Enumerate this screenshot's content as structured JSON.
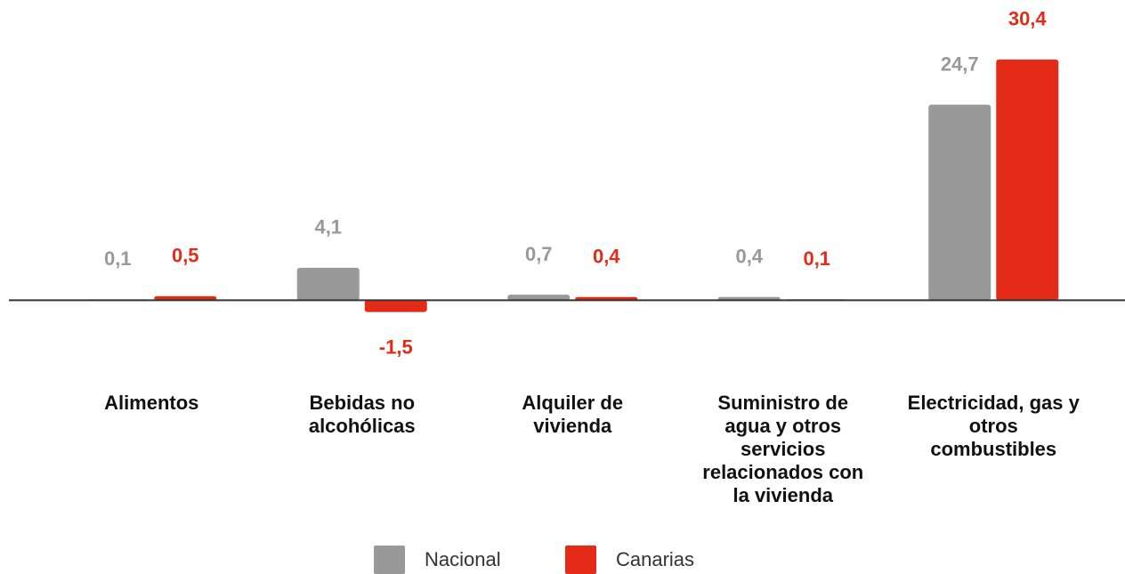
{
  "chart_data": {
    "type": "bar",
    "categories": [
      "Alimentos",
      "Bebidas no alcohólicas",
      "Alquiler de vivienda",
      "Suministro de agua y otros servicios relacionados con la vivienda",
      "Electricidad, gas y otros combustibles"
    ],
    "series": [
      {
        "name": "Nacional",
        "color": "#999999",
        "values": [
          0.1,
          4.1,
          0.7,
          0.4,
          24.7
        ],
        "value_labels": [
          "0,1",
          "4,1",
          "0,7",
          "0,4",
          "24,7"
        ]
      },
      {
        "name": "Canarias",
        "color": "#e32b17",
        "values": [
          0.5,
          -1.5,
          0.4,
          0.1,
          30.4
        ],
        "value_labels": [
          "0,5",
          "-1,5",
          "0,4",
          "0,1",
          "30,4"
        ]
      }
    ],
    "ylim": [
      -3,
      35
    ]
  }
}
